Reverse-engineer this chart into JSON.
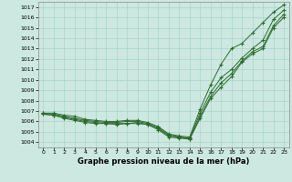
{
  "title": "Graphe pression niveau de la mer (hPa)",
  "bg_color": "#cce8e0",
  "grid_color": "#aad4c8",
  "line_color": "#2d6b2d",
  "xlim": [
    -0.5,
    23.5
  ],
  "ylim": [
    1003.5,
    1017.5
  ],
  "yticks": [
    1004,
    1005,
    1006,
    1007,
    1008,
    1009,
    1010,
    1011,
    1012,
    1013,
    1014,
    1015,
    1016,
    1017
  ],
  "xticks": [
    0,
    1,
    2,
    3,
    4,
    5,
    6,
    7,
    8,
    9,
    10,
    11,
    12,
    13,
    14,
    15,
    16,
    17,
    18,
    19,
    20,
    21,
    22,
    23
  ],
  "series": [
    [
      1006.8,
      1006.8,
      1006.6,
      1006.5,
      1006.2,
      1006.1,
      1006.0,
      1006.0,
      1006.1,
      1006.1,
      1005.9,
      1005.5,
      1004.8,
      1004.6,
      1004.5,
      1007.2,
      1009.5,
      1011.5,
      1013.0,
      1013.5,
      1014.5,
      1015.5,
      1016.5,
      1017.2
    ],
    [
      1006.8,
      1006.7,
      1006.5,
      1006.3,
      1006.1,
      1006.0,
      1005.9,
      1005.9,
      1006.0,
      1006.0,
      1005.8,
      1005.4,
      1004.7,
      1004.5,
      1004.4,
      1006.8,
      1008.8,
      1010.2,
      1011.0,
      1012.1,
      1013.0,
      1013.8,
      1015.8,
      1016.7
    ],
    [
      1006.7,
      1006.6,
      1006.4,
      1006.2,
      1006.0,
      1005.9,
      1005.8,
      1005.8,
      1005.8,
      1005.9,
      1005.7,
      1005.3,
      1004.6,
      1004.5,
      1004.3,
      1006.5,
      1008.4,
      1009.7,
      1010.6,
      1011.8,
      1012.7,
      1013.2,
      1015.2,
      1016.3
    ],
    [
      1006.7,
      1006.6,
      1006.3,
      1006.1,
      1005.9,
      1005.8,
      1005.8,
      1005.7,
      1005.8,
      1005.8,
      1005.7,
      1005.2,
      1004.5,
      1004.4,
      1004.3,
      1006.3,
      1008.2,
      1009.3,
      1010.3,
      1011.7,
      1012.5,
      1013.0,
      1015.0,
      1016.0
    ]
  ]
}
